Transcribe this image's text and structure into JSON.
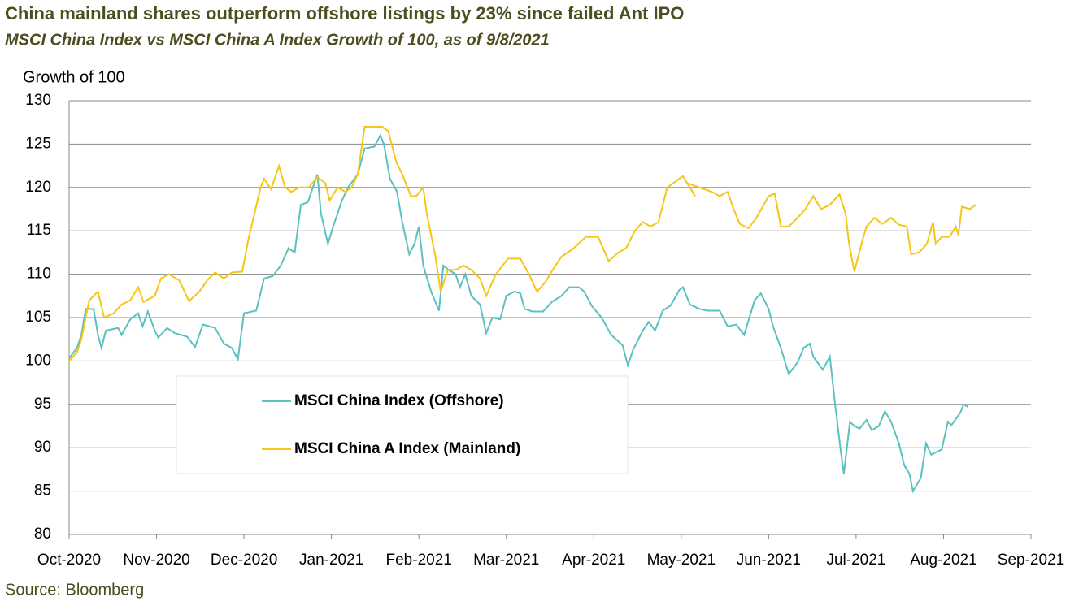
{
  "chart_data": {
    "type": "line",
    "title": "China mainland shares outperform offshore listings by 23% since failed Ant IPO",
    "subtitle": "MSCI China Index vs MSCI China A Index Growth of 100, as of 9/8/2021",
    "y_label": "Growth of 100",
    "source": "Source: Bloomberg",
    "xlim": [
      0,
      11
    ],
    "xticks": [
      {
        "value": 0,
        "label": "Oct-2020"
      },
      {
        "value": 1,
        "label": "Nov-2020"
      },
      {
        "value": 2,
        "label": "Dec-2020"
      },
      {
        "value": 3,
        "label": "Jan-2021"
      },
      {
        "value": 4,
        "label": "Feb-2021"
      },
      {
        "value": 5,
        "label": "Mar-2021"
      },
      {
        "value": 6,
        "label": "Apr-2021"
      },
      {
        "value": 7,
        "label": "May-2021"
      },
      {
        "value": 8,
        "label": "Jun-2021"
      },
      {
        "value": 9,
        "label": "Jul-2021"
      },
      {
        "value": 10,
        "label": "Aug-2021"
      },
      {
        "value": 11,
        "label": "Sep-2021"
      }
    ],
    "ylim": [
      80,
      130
    ],
    "yticks": [
      80,
      85,
      90,
      95,
      100,
      105,
      110,
      115,
      120,
      125,
      130
    ],
    "grid": true,
    "series": [
      {
        "name": "MSCI China Index (Offshore)",
        "color": "#5bc0c0",
        "x": [
          0,
          0.09,
          0.14,
          0.19,
          0.28,
          0.33,
          0.37,
          0.42,
          0.56,
          0.6,
          0.7,
          0.79,
          0.84,
          0.9,
          0.98,
          1.02,
          1.12,
          1.21,
          1.35,
          1.44,
          1.53,
          1.67,
          1.77,
          1.86,
          1.93,
          2.0,
          2.14,
          2.23,
          2.33,
          2.42,
          2.51,
          2.58,
          2.65,
          2.73,
          2.84,
          2.88,
          2.96,
          3.02,
          3.12,
          3.19,
          3.3,
          3.38,
          3.49,
          3.56,
          3.6,
          3.67,
          3.75,
          3.81,
          3.89,
          3.95,
          4.0,
          4.05,
          4.14,
          4.23,
          4.28,
          4.34,
          4.42,
          4.47,
          4.53,
          4.6,
          4.7,
          4.77,
          4.84,
          4.93,
          5.0,
          5.09,
          5.16,
          5.21,
          5.3,
          5.42,
          5.52,
          5.63,
          5.72,
          5.83,
          5.89,
          5.98,
          6.09,
          6.2,
          6.33,
          6.39,
          6.45,
          6.56,
          6.63,
          6.7,
          6.79,
          6.88,
          6.98,
          7.02,
          7.1,
          7.21,
          7.3,
          7.44,
          7.53,
          7.63,
          7.72,
          7.84,
          7.91,
          8.0,
          8.05,
          8.14,
          8.23,
          8.33,
          8.4,
          8.47,
          8.51,
          8.62,
          8.7,
          8.76,
          8.82,
          8.86,
          8.93,
          8.98,
          9.04,
          9.12,
          9.18,
          9.26,
          9.33,
          9.4,
          9.49,
          9.55,
          9.61,
          9.65,
          9.74,
          9.8,
          9.86,
          9.98,
          10.05,
          10.09,
          10.19,
          10.23,
          10.28
        ],
        "values": [
          100.3,
          101.5,
          103,
          106,
          106,
          103,
          101.5,
          103.5,
          103.8,
          103,
          104.8,
          105.5,
          104,
          105.7,
          103.5,
          102.7,
          103.8,
          103.2,
          102.8,
          101.6,
          104.2,
          103.8,
          102,
          101.5,
          100.2,
          105.5,
          105.8,
          109.5,
          109.8,
          111,
          113,
          112.5,
          118,
          118.3,
          121.5,
          117,
          113.5,
          115.5,
          118.5,
          120,
          121.5,
          124.5,
          124.7,
          126,
          125,
          121,
          119.5,
          116,
          112.3,
          113.5,
          115.5,
          111,
          108,
          105.8,
          111,
          110.5,
          110,
          108.5,
          110,
          107.5,
          106.5,
          103.2,
          105,
          104.8,
          107.5,
          108,
          107.8,
          106,
          105.7,
          105.7,
          106.8,
          107.5,
          108.5,
          108.5,
          108,
          106.3,
          105,
          103,
          101.8,
          99.5,
          101.3,
          103.5,
          104.5,
          103.5,
          105.8,
          106.4,
          108.2,
          108.5,
          106.5,
          106,
          105.8,
          105.8,
          104,
          104.2,
          103,
          107,
          107.8,
          106,
          104,
          101.5,
          98.5,
          99.8,
          101.5,
          102,
          100.5,
          99,
          100.5,
          95,
          90,
          87,
          93,
          92.5,
          92.2,
          93.2,
          92,
          92.5,
          94.2,
          93,
          90.5,
          88,
          87,
          85,
          86.5,
          90.5,
          89.2,
          89.8,
          93,
          92.6,
          94,
          95,
          94.7
        ]
      },
      {
        "name": "MSCI China A Index (Mainland)",
        "color": "#f5c518",
        "x": [
          0,
          0.09,
          0.14,
          0.23,
          0.33,
          0.4,
          0.51,
          0.6,
          0.7,
          0.79,
          0.85,
          0.98,
          1.05,
          1.14,
          1.26,
          1.37,
          1.49,
          1.58,
          1.67,
          1.77,
          1.86,
          1.98,
          2.05,
          2.12,
          2.19,
          2.23,
          2.31,
          2.4,
          2.47,
          2.54,
          2.63,
          2.74,
          2.84,
          2.93,
          2.98,
          3.07,
          3.16,
          3.23,
          3.3,
          3.38,
          3.58,
          3.65,
          3.74,
          3.81,
          3.91,
          3.97,
          4.05,
          4.09,
          4.19,
          4.25,
          4.33,
          4.42,
          4.51,
          4.6,
          4.7,
          4.77,
          4.88,
          5.02,
          5.16,
          5.26,
          5.35,
          5.44,
          5.53,
          5.63,
          5.77,
          5.91,
          6.05,
          6.17,
          6.28,
          6.37,
          6.47,
          6.56,
          6.65,
          6.74,
          6.84,
          7.02,
          7.16,
          7.07,
          7.35,
          7.44,
          7.53,
          7.6,
          7.67,
          7.77,
          7.86,
          8.0,
          8.07,
          8.14,
          8.23,
          8.33,
          8.42,
          8.51,
          8.6,
          8.7,
          8.81,
          8.88,
          8.92,
          8.98,
          9.07,
          9.12,
          9.21,
          9.3,
          9.4,
          9.49,
          9.58,
          9.63,
          9.72,
          9.81,
          9.88,
          9.91,
          9.98,
          10.07,
          10.14,
          10.17,
          10.21,
          10.3,
          10.37
        ],
        "values": [
          100,
          101,
          102.5,
          107,
          108,
          105,
          105.5,
          106.5,
          107,
          108.5,
          106.8,
          107.5,
          109.5,
          110,
          109.3,
          106.9,
          108,
          109.3,
          110.2,
          109.5,
          110.2,
          110.3,
          114,
          117,
          120,
          121,
          119.8,
          122.5,
          120,
          119.5,
          120,
          120,
          121.2,
          120.5,
          118.5,
          120,
          119.5,
          120,
          121.5,
          127,
          127,
          126.5,
          123,
          121.5,
          119,
          119,
          120,
          117,
          112,
          108,
          110.5,
          110.5,
          111,
          110.5,
          109.5,
          107.5,
          110,
          111.8,
          111.8,
          110,
          108,
          109,
          110.5,
          112,
          113,
          114.3,
          114.3,
          111.5,
          112.5,
          113,
          115,
          116,
          115.5,
          116,
          120,
          121.3,
          119,
          120.5,
          119.5,
          119,
          119.5,
          117.5,
          115.8,
          115.3,
          116.5,
          119,
          119.3,
          115.5,
          115.5,
          116.5,
          117.5,
          119,
          117.5,
          118,
          119.2,
          117,
          113.5,
          110.3,
          113.8,
          115.5,
          116.5,
          115.8,
          116.5,
          115.7,
          115.5,
          112.3,
          112.5,
          113.5,
          116,
          113.5,
          114.3,
          114.3,
          115.5,
          114.5,
          117.8,
          117.5,
          118
        ]
      }
    ]
  }
}
